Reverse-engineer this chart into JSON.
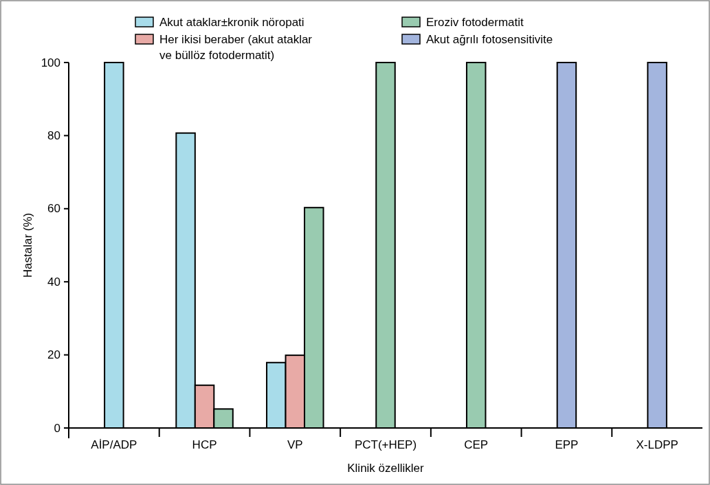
{
  "chart_data": {
    "type": "bar",
    "xlabel": "Klinik özellikler",
    "ylabel": "Hastalar (%)",
    "categories": [
      "AİP/ADP",
      "HCP",
      "VP",
      "PCT(+HEP)",
      "CEP",
      "EPP",
      "X-LDPP"
    ],
    "series": [
      {
        "name": "Akut ataklar±kronik nöropati",
        "color": "#a8dcea",
        "values": [
          100,
          80.7,
          17.9,
          null,
          null,
          null,
          null
        ]
      },
      {
        "name": "Her ikisi beraber (akut ataklar ve büllöz fotodermatit)",
        "color": "#e8aaa6",
        "values": [
          null,
          11.7,
          19.9,
          null,
          null,
          null,
          null
        ]
      },
      {
        "name": "Eroziv fotodermatit",
        "color": "#99cbb0",
        "values": [
          null,
          5.2,
          60.3,
          100,
          100,
          null,
          null
        ]
      },
      {
        "name": "Akut ağrılı fotosensitivite",
        "color": "#a3b5de",
        "values": [
          null,
          null,
          null,
          null,
          null,
          100,
          100
        ]
      }
    ],
    "ylim": [
      0,
      100
    ],
    "yticks": [
      0,
      20,
      40,
      60,
      80,
      100
    ],
    "grid": false,
    "legend": "top"
  }
}
